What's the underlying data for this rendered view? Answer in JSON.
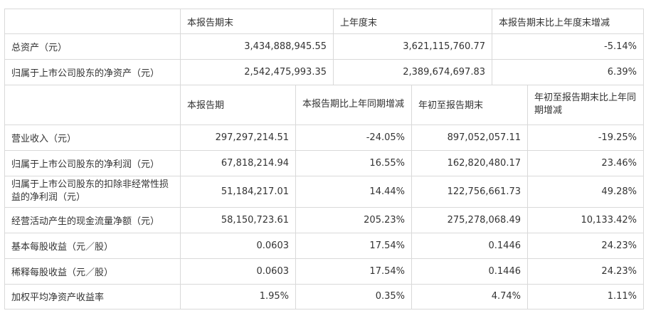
{
  "balance": {
    "headers": [
      "本报告期末",
      "上年度末",
      "本报告期末比上年度末增减"
    ],
    "rows": [
      {
        "label": "总资产（元）",
        "current": "3,434,888,945.55",
        "prior": "3,621,115,760.77",
        "change": "-5.14%"
      },
      {
        "label": "归属于上市公司股东的净资产（元）",
        "current": "2,542,475,993.35",
        "prior": "2,389,674,697.83",
        "change": "6.39%"
      }
    ]
  },
  "income": {
    "headers": [
      "本报告期",
      "本报告期比上年同期增减",
      "年初至报告期末",
      "年初至报告期末比上年同期增减"
    ],
    "rows": [
      {
        "label": "营业收入（元）",
        "period": "297,297,214.51",
        "period_change": "-24.05%",
        "ytd": "897,052,057.11",
        "ytd_change": "-19.25%"
      },
      {
        "label": "归属于上市公司股东的净利润（元）",
        "period": "67,818,214.94",
        "period_change": "16.55%",
        "ytd": "162,820,480.17",
        "ytd_change": "23.46%"
      },
      {
        "label": "归属于上市公司股东的扣除非经常性损益的净利润（元）",
        "period": "51,184,217.01",
        "period_change": "14.44%",
        "ytd": "122,756,661.73",
        "ytd_change": "49.28%"
      },
      {
        "label": "经营活动产生的现金流量净额（元）",
        "period": "58,150,723.61",
        "period_change": "205.23%",
        "ytd": "275,278,068.49",
        "ytd_change": "10,133.42%"
      },
      {
        "label": "基本每股收益（元／股）",
        "period": "0.0603",
        "period_change": "17.54%",
        "ytd": "0.1446",
        "ytd_change": "24.23%"
      },
      {
        "label": "稀释每股收益（元／股）",
        "period": "0.0603",
        "period_change": "17.54%",
        "ytd": "0.1446",
        "ytd_change": "24.23%"
      },
      {
        "label": "加权平均净资产收益率",
        "period": "1.95%",
        "period_change": "0.35%",
        "ytd": "4.74%",
        "ytd_change": "1.11%"
      }
    ]
  }
}
